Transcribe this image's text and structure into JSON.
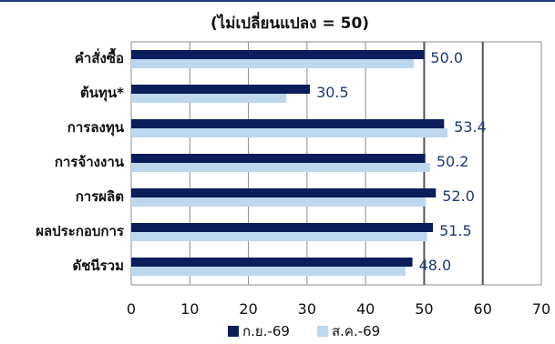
{
  "chart_data": {
    "type": "bar",
    "orientation": "horizontal",
    "title": "(ไม่เปลี่ยนแปลง = 50)",
    "categories": [
      "คำสั่งซื้อ",
      "ต้นทุน*",
      "การลงทุน",
      "การจ้างงาน",
      "การผลิต",
      "ผลประกอบการ",
      "ดัชนีรวม"
    ],
    "series": [
      {
        "name": "ก.ย.-69",
        "color": "#0b1e5b",
        "values": [
          50.0,
          30.5,
          53.4,
          50.2,
          52.0,
          51.5,
          48.0
        ]
      },
      {
        "name": "ส.ค.-69",
        "color": "#bdd7ee",
        "values": [
          48.2,
          26.5,
          54.0,
          51.0,
          50.3,
          50.5,
          46.8
        ]
      }
    ],
    "value_labels": [
      "50.0",
      "30.5",
      "53.4",
      "50.2",
      "52.0",
      "51.5",
      "48.0"
    ],
    "value_label_color": "#1f3a73",
    "xlim": [
      0,
      70
    ],
    "xticks": [
      "0",
      "10",
      "20",
      "30",
      "40",
      "50",
      "60",
      "70"
    ],
    "reference_lines": [
      50,
      60
    ],
    "grid": true,
    "legend_position": "bottom"
  }
}
